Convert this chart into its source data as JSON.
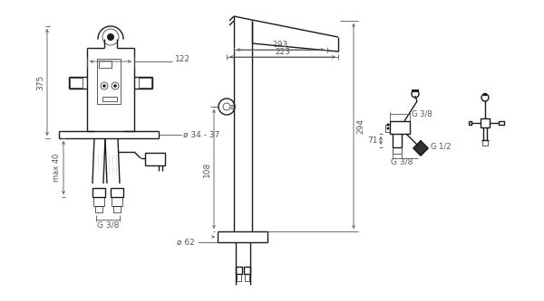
{
  "bg_color": "#ffffff",
  "line_color": "#1a1a1a",
  "dim_color": "#555555",
  "fig_width": 6.0,
  "fig_height": 3.33,
  "dpi": 100,
  "annotations": {
    "dim_122": "122",
    "dim_375": "375",
    "dim_max40": "max 40",
    "dim_34_37": "ø 34 - 37",
    "dim_G38_left": "G 3/8",
    "dim_193": "193",
    "dim_223": "223",
    "dim_294": "294",
    "dim_108": "108",
    "dim_62": "ø 62",
    "dim_G38_right": "G 3/8",
    "dim_G38_bottom": "G 3/8",
    "dim_G12": "G 1/2",
    "dim_71": "71"
  }
}
